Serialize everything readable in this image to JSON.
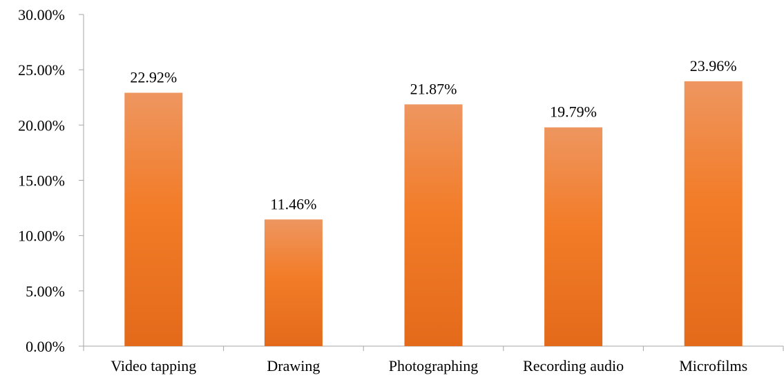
{
  "chart_data": {
    "type": "bar",
    "categories": [
      "Video tapping",
      "Drawing",
      "Photographing",
      "Recording audio",
      "Microfilms"
    ],
    "values": [
      22.92,
      11.46,
      21.87,
      19.79,
      23.96
    ],
    "data_labels": [
      "22.92%",
      "11.46%",
      "21.87%",
      "19.79%",
      "23.96%"
    ],
    "y_ticks": [
      "0.00%",
      "5.00%",
      "10.00%",
      "15.00%",
      "20.00%",
      "25.00%",
      "30.00%"
    ],
    "ylim": [
      0,
      30
    ],
    "title": "",
    "xlabel": "",
    "ylabel": "",
    "grid": false,
    "legend": "none",
    "colors": {
      "bar_top": "#ee9660",
      "bar_mid": "#f27c28",
      "bar_bottom": "#e36a1a",
      "axis": "#a6a6a6"
    }
  }
}
